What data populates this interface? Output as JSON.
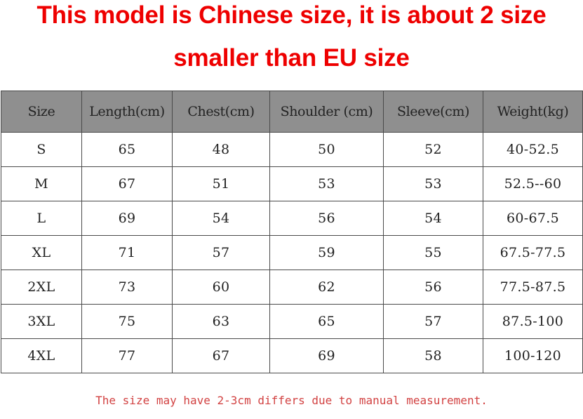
{
  "headline": {
    "line1": "This model is Chinese size, it is about 2 size",
    "line2": "smaller than EU size"
  },
  "colors": {
    "headline": "#ee0000",
    "header_bg": "#8f8f8f",
    "note": "#d24242"
  },
  "table": {
    "columns": [
      "Size",
      "Length(cm)",
      "Chest(cm)",
      "Shoulder (cm)",
      "Sleeve(cm)",
      "Weight(kg)"
    ],
    "rows": [
      [
        "S",
        "65",
        "48",
        "50",
        "52",
        "40-52.5"
      ],
      [
        "M",
        "67",
        "51",
        "53",
        "53",
        "52.5--60"
      ],
      [
        "L",
        "69",
        "54",
        "56",
        "54",
        "60-67.5"
      ],
      [
        "XL",
        "71",
        "57",
        "59",
        "55",
        "67.5-77.5"
      ],
      [
        "2XL",
        "73",
        "60",
        "62",
        "56",
        "77.5-87.5"
      ],
      [
        "3XL",
        "75",
        "63",
        "65",
        "57",
        "87.5-100"
      ],
      [
        "4XL",
        "77",
        "67",
        "69",
        "58",
        "100-120"
      ]
    ]
  },
  "note": "The size may have 2-3cm differs due to manual measurement."
}
